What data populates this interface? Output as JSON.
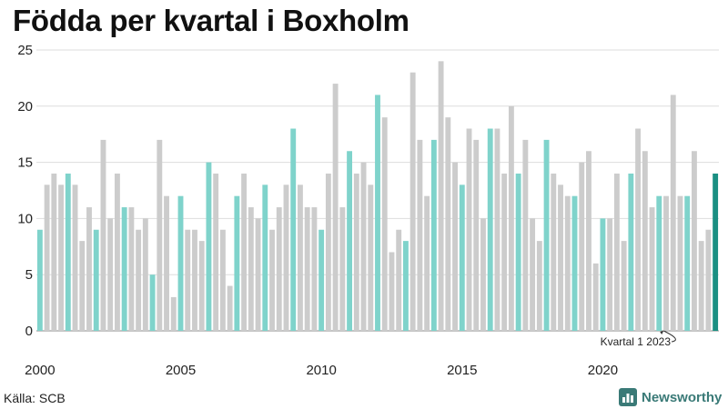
{
  "chart_data": {
    "type": "bar",
    "title": "Födda per kvartal i Boxholm",
    "xlabel": "",
    "ylabel": "",
    "ylim": [
      0,
      25
    ],
    "yticks": [
      0,
      5,
      10,
      15,
      20,
      25
    ],
    "x_tick_labels": [
      {
        "label": "2000",
        "index": 0
      },
      {
        "label": "2005",
        "index": 20
      },
      {
        "label": "2010",
        "index": 40
      },
      {
        "label": "2015",
        "index": 60
      },
      {
        "label": "2020",
        "index": 80
      }
    ],
    "grid": "horizontal",
    "annotation": {
      "text": "Kvartal 1 2023",
      "target_index": 92
    },
    "colors": {
      "q1": "#7fd3cb",
      "other": "#cccccc",
      "latest": "#1a8f82"
    },
    "series": [
      {
        "values": [
          9,
          13,
          14,
          13,
          14,
          13,
          8,
          11,
          9,
          17,
          10,
          14,
          11,
          11,
          9,
          10,
          5,
          17,
          12,
          3,
          12,
          9,
          9,
          8,
          15,
          14,
          9,
          4,
          12,
          14,
          11,
          10,
          13,
          9,
          11,
          13,
          18,
          13,
          11,
          11,
          9,
          14,
          22,
          11,
          16,
          14,
          15,
          13,
          21,
          19,
          7,
          9,
          8,
          23,
          17,
          12,
          17,
          24,
          19,
          15,
          13,
          18,
          17,
          10,
          18,
          18,
          14,
          20,
          14,
          17,
          10,
          8,
          17,
          14,
          13,
          12,
          12,
          15,
          16,
          6,
          10,
          10,
          14,
          8,
          14,
          18,
          16,
          11,
          12,
          12,
          21,
          12,
          12,
          16,
          8,
          9,
          14
        ]
      }
    ]
  },
  "source": "Källa: SCB",
  "brand": {
    "name": "Newsworthy",
    "icon": "bar-chart-icon"
  }
}
